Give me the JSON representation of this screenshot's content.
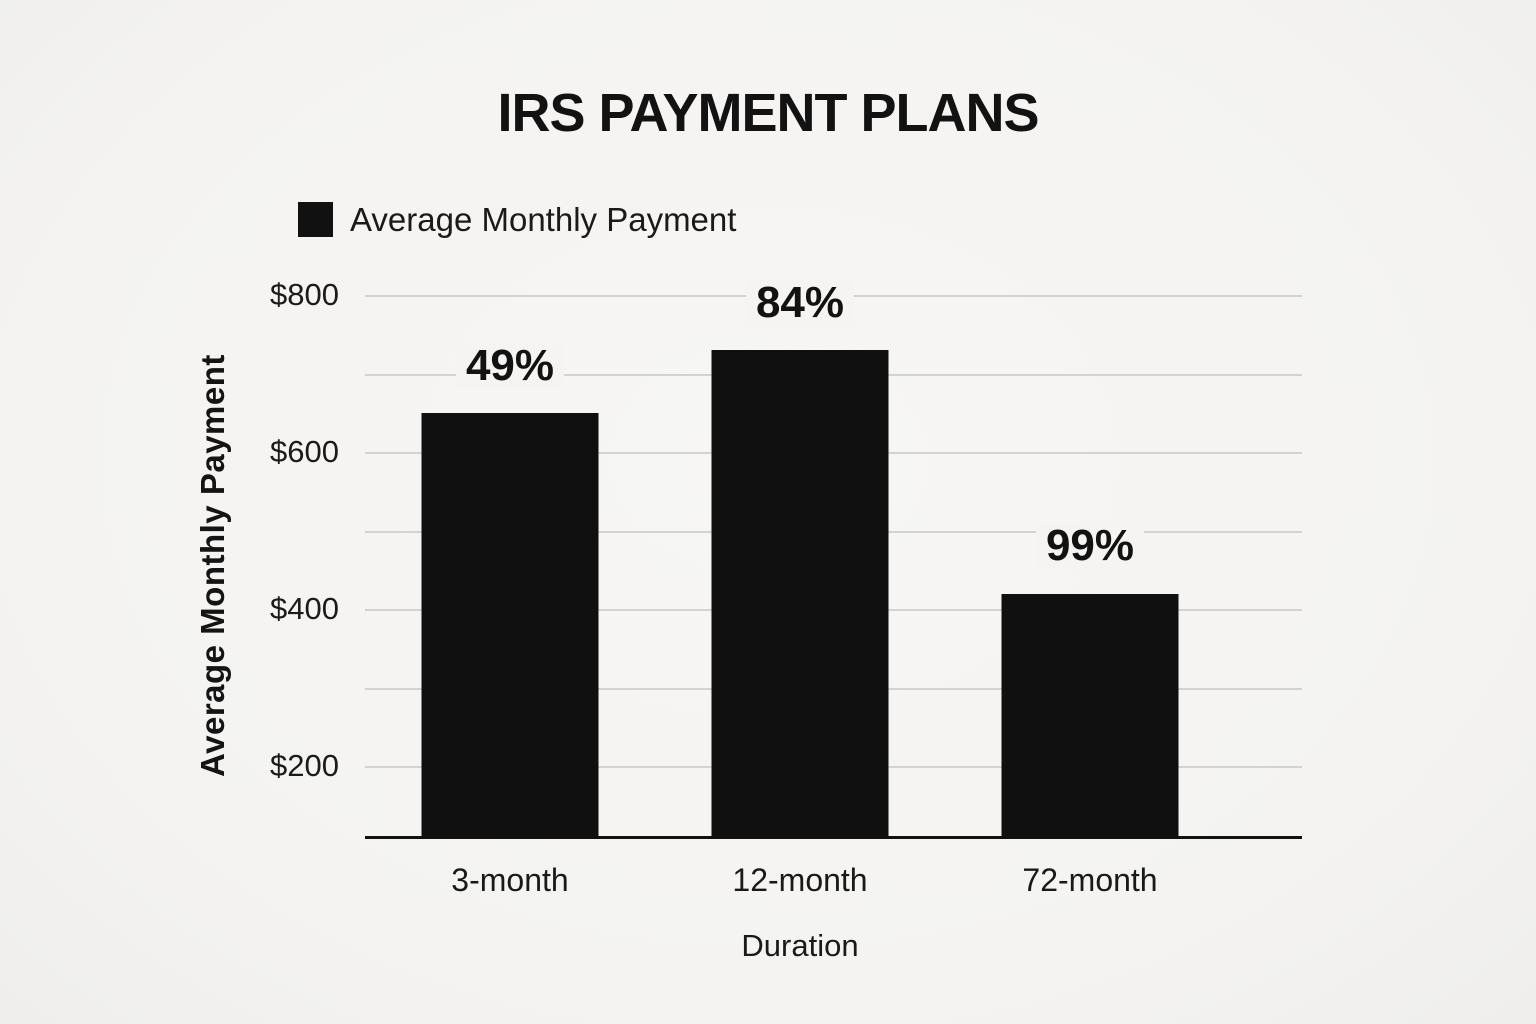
{
  "page": {
    "background_color": "#f5f4f2",
    "text_color": "#161616"
  },
  "chart_data": {
    "type": "bar",
    "title": "IRS PAYMENT PLANS",
    "legend": [
      {
        "label": "Average Monthly Payment",
        "color": "#111111"
      }
    ],
    "legend_position": "top-left",
    "categories": [
      "3-month",
      "12-month",
      "72-month"
    ],
    "series": [
      {
        "name": "Average Monthly Payment",
        "values": [
          650,
          730,
          420
        ]
      }
    ],
    "bar_labels": [
      "49%",
      "84%",
      "99%"
    ],
    "xlabel": "Duration",
    "ylabel": "Average Monthly Payment",
    "ylim": [
      110,
      800
    ],
    "yticks": [
      {
        "value": 200,
        "label": "$200"
      },
      {
        "value": 400,
        "label": "$400"
      },
      {
        "value": 600,
        "label": "$600"
      },
      {
        "value": 800,
        "label": "$800"
      }
    ],
    "gridline_values": [
      200,
      300,
      400,
      500,
      600,
      700,
      800
    ],
    "grid": "horizontal",
    "bar_color": "#101010",
    "gridline_color": "#d4d3d1",
    "axis_line_color": "#111111"
  }
}
